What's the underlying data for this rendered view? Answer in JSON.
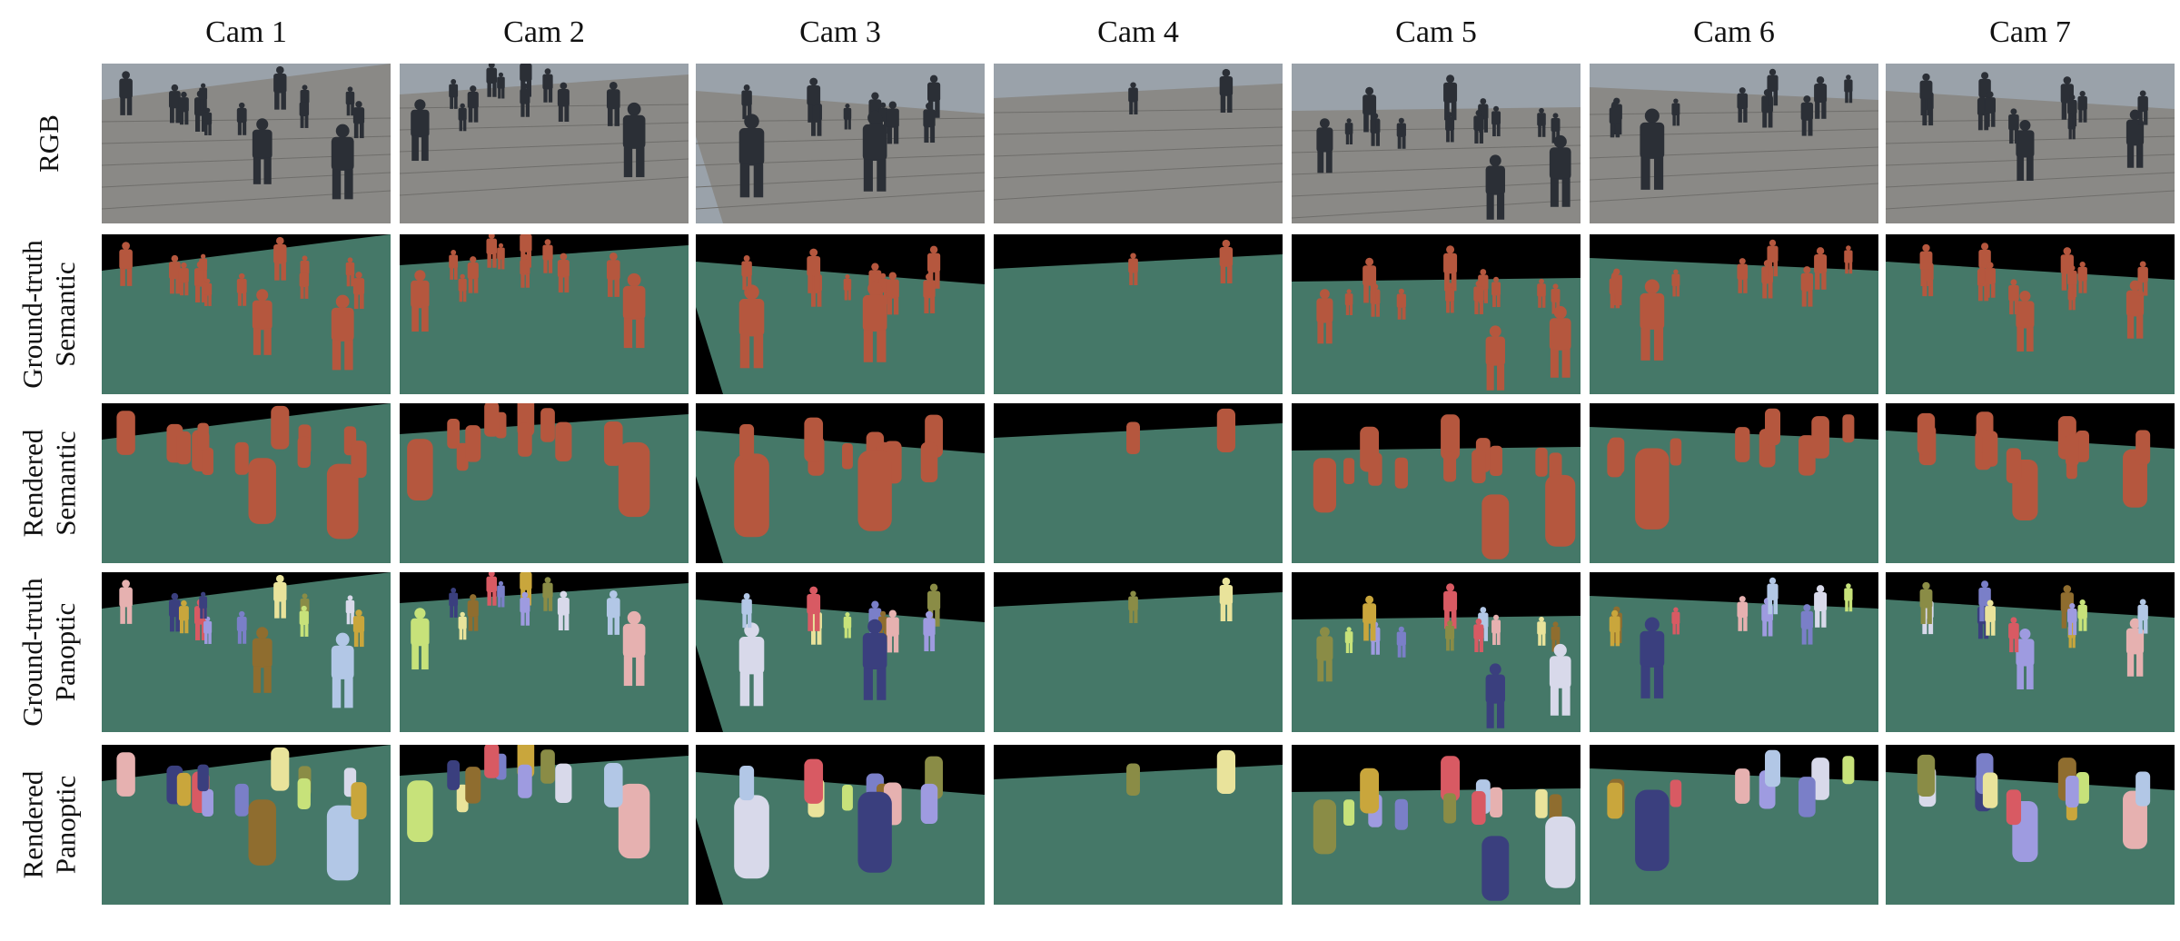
{
  "columns": [
    "Cam 1",
    "Cam 2",
    "Cam 3",
    "Cam 4",
    "Cam 5",
    "Cam 6",
    "Cam 7"
  ],
  "rows": [
    {
      "kind": "rgb",
      "label_lines": [
        "RGB"
      ]
    },
    {
      "kind": "semantic",
      "label_lines": [
        "Ground-truth",
        "Semantic"
      ]
    },
    {
      "kind": "semantic",
      "label_lines": [
        "Rendered",
        "Semantic"
      ]
    },
    {
      "kind": "panoptic",
      "label_lines": [
        "Ground-truth",
        "Panoptic"
      ]
    },
    {
      "kind": "panoptic",
      "label_lines": [
        "Rendered",
        "Panoptic"
      ]
    }
  ],
  "colors": {
    "ground": "#457868",
    "background": "#000000",
    "person_semantic": "#b5573e",
    "panoptic_palette": [
      "#3a3f7e",
      "#c9a63c",
      "#7a7fc8",
      "#e9e39b",
      "#8a8c46",
      "#d85a63",
      "#9e9be0",
      "#c7e27a",
      "#8f6d2f",
      "#e6b1b0",
      "#d8d9ea",
      "#b2c7e6"
    ],
    "rgb_sky": "#9aa2aa",
    "rgb_ground": "#8a8986",
    "rgb_person": "#2b2f36"
  }
}
